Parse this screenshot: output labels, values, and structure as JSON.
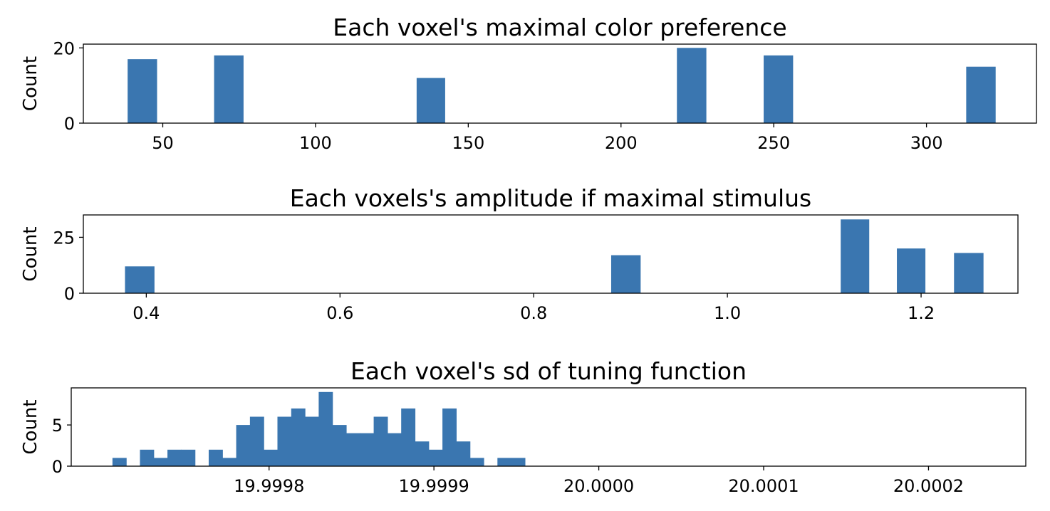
{
  "chart_data": [
    {
      "type": "bar",
      "title": "Each voxel's maximal color preference",
      "xlabel": "",
      "ylabel": "Count",
      "xlim": [
        24,
        336
      ],
      "ylim": [
        0,
        21
      ],
      "x_ticks": [
        50,
        100,
        150,
        200,
        250,
        300
      ],
      "x_tick_labels": [
        "50",
        "100",
        "150",
        "200",
        "250",
        "300"
      ],
      "y_ticks": [
        0,
        20
      ],
      "y_tick_labels": [
        "0",
        "20"
      ],
      "bar_color": "#3a76b0",
      "bins": [
        {
          "x0": 38.5,
          "x1": 48.0,
          "count": 17
        },
        {
          "x0": 66.8,
          "x1": 76.3,
          "count": 18
        },
        {
          "x0": 133.1,
          "x1": 142.3,
          "count": 12
        },
        {
          "x0": 218.3,
          "x1": 227.8,
          "count": 20
        },
        {
          "x0": 246.7,
          "x1": 256.2,
          "count": 18
        },
        {
          "x0": 313.0,
          "x1": 322.5,
          "count": 15
        }
      ],
      "grid": false
    },
    {
      "type": "bar",
      "title": "Each voxels's amplitude if maximal stimulus",
      "xlabel": "",
      "ylabel": "Count",
      "xlim": [
        0.335,
        1.3
      ],
      "ylim": [
        0,
        35
      ],
      "x_ticks": [
        0.4,
        0.6,
        0.8,
        1.0,
        1.2
      ],
      "x_tick_labels": [
        "0.4",
        "0.6",
        "0.8",
        "1.0",
        "1.2"
      ],
      "y_ticks": [
        0,
        25
      ],
      "y_tick_labels": [
        "0",
        "25"
      ],
      "bar_color": "#3a76b0",
      "bins": [
        {
          "x0": 0.378,
          "x1": 0.408,
          "count": 12
        },
        {
          "x0": 0.88,
          "x1": 0.91,
          "count": 17
        },
        {
          "x0": 1.117,
          "x1": 1.146,
          "count": 33
        },
        {
          "x0": 1.175,
          "x1": 1.204,
          "count": 20
        },
        {
          "x0": 1.234,
          "x1": 1.264,
          "count": 18
        }
      ],
      "grid": false
    },
    {
      "type": "bar",
      "title": "Each voxel's sd of tuning function",
      "xlabel": "",
      "ylabel": "Count",
      "xlim": [
        19.99968,
        20.000259
      ],
      "ylim": [
        0,
        9.5
      ],
      "x_ticks": [
        19.9998,
        19.9999,
        20.0,
        20.0001,
        20.0002
      ],
      "x_tick_labels": [
        "19.9998",
        "19.9999",
        "20.0000",
        "20.0001",
        "20.0002"
      ],
      "y_ticks": [
        0,
        5
      ],
      "y_tick_labels": [
        "0",
        "5"
      ],
      "bar_color": "#3a76b0",
      "bin_start": 19.999705,
      "bin_width": 8.34e-06,
      "counts": [
        1,
        0,
        2,
        1,
        2,
        2,
        0,
        2,
        1,
        5,
        6,
        2,
        6,
        7,
        6,
        9,
        5,
        4,
        4,
        6,
        4,
        7,
        3,
        2,
        7,
        3,
        1,
        0,
        1,
        1
      ],
      "grid": false
    }
  ]
}
